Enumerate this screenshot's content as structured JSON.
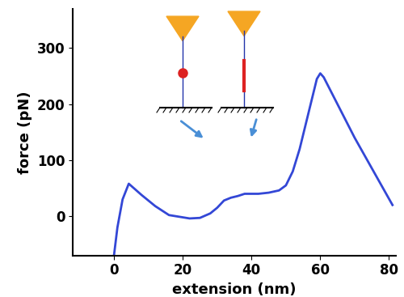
{
  "chart_data": {
    "type": "line",
    "x_label": "extension (nm)",
    "y_label": "force (pN)",
    "color": "#3347d6",
    "x": [
      0,
      1,
      2.5,
      4.3,
      8,
      12,
      16,
      18,
      20,
      22,
      25,
      28,
      30,
      32,
      34,
      36,
      38,
      42,
      45,
      48,
      50,
      52,
      54,
      56,
      58,
      59,
      60,
      61,
      70,
      81
    ],
    "values": [
      -70,
      -20,
      30,
      58,
      38,
      18,
      2,
      0,
      -2,
      -4,
      -3,
      5,
      15,
      28,
      33,
      36,
      40,
      40,
      42,
      46,
      55,
      80,
      120,
      170,
      220,
      245,
      255,
      248,
      140,
      20
    ],
    "xlim": [
      -12,
      82
    ],
    "ylim": [
      -70,
      370
    ],
    "xticks": [
      0,
      20,
      40,
      60,
      80
    ],
    "yticks": [
      0,
      100,
      200,
      300
    ]
  }
}
